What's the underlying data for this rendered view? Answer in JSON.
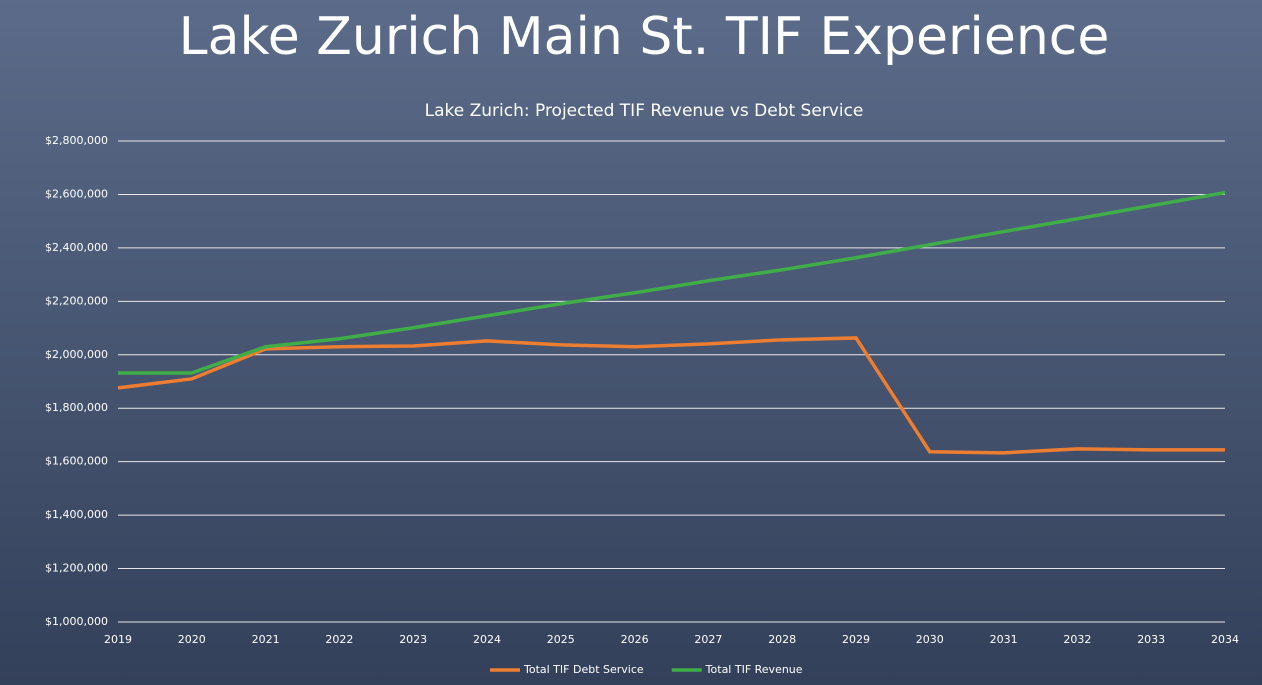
{
  "header": {
    "title": "Lake Zurich Main St. TIF Experience"
  },
  "chart_data": {
    "type": "line",
    "title": "Lake Zurich: Projected TIF Revenue vs Debt Service",
    "x": [
      2019,
      2020,
      2021,
      2022,
      2023,
      2024,
      2025,
      2026,
      2027,
      2028,
      2029,
      2030,
      2031,
      2032,
      2033,
      2034
    ],
    "series": [
      {
        "name": "Total TIF Debt Service",
        "color": "#ed7d31",
        "values": [
          1876000,
          1910000,
          2022000,
          2030000,
          2033000,
          2052000,
          2037000,
          2030000,
          2041000,
          2056000,
          2063000,
          1637000,
          1633000,
          1648000,
          1644000,
          1644000
        ]
      },
      {
        "name": "Total TIF Revenue",
        "color": "#3fae49",
        "values": [
          1932000,
          1932000,
          2030000,
          2060000,
          2101000,
          2146000,
          2191000,
          2232000,
          2277000,
          2318000,
          2363000,
          2412000,
          2461000,
          2509000,
          2558000,
          2607000
        ]
      }
    ],
    "xlim": [
      2019,
      2034
    ],
    "xticks": [
      2019,
      2020,
      2021,
      2022,
      2023,
      2024,
      2025,
      2026,
      2027,
      2028,
      2029,
      2030,
      2031,
      2032,
      2033,
      2034
    ],
    "ylim": [
      1000000,
      2800000
    ],
    "yticks": [
      {
        "value": 1000000,
        "label": "$1,000,000"
      },
      {
        "value": 1200000,
        "label": "$1,200,000"
      },
      {
        "value": 1400000,
        "label": "$1,400,000"
      },
      {
        "value": 1600000,
        "label": "$1,600,000"
      },
      {
        "value": 1800000,
        "label": "$1,800,000"
      },
      {
        "value": 2000000,
        "label": "$2,000,000"
      },
      {
        "value": 2200000,
        "label": "$2,200,000"
      },
      {
        "value": 2400000,
        "label": "$2,400,000"
      },
      {
        "value": 2600000,
        "label": "$2,600,000"
      },
      {
        "value": 2800000,
        "label": "$2,800,000"
      }
    ],
    "grid": true,
    "legend": "bottom"
  }
}
